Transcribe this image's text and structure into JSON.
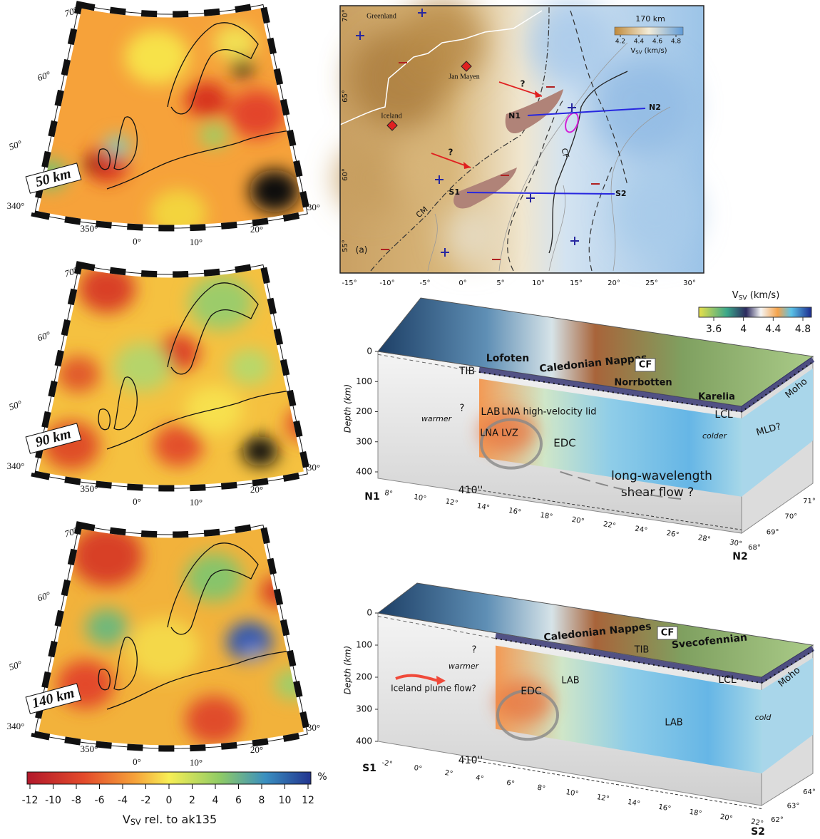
{
  "left_maps": {
    "panels": [
      {
        "depth": "50 km"
      },
      {
        "depth": "90 km"
      },
      {
        "depth": "140 km"
      }
    ],
    "lat_labels": [
      "70°",
      "60°",
      "50°"
    ],
    "lon_labels": [
      "340°",
      "350°",
      "0°",
      "10°",
      "20°",
      "30°"
    ]
  },
  "colorbar": {
    "ticks": [
      -12,
      -10,
      -8,
      -6,
      -4,
      -2,
      0,
      2,
      4,
      6,
      8,
      10,
      12
    ],
    "unit": "%",
    "label": {
      "v": "V",
      "sub": "SV",
      "rest": " rel. to ak135"
    }
  },
  "map_a": {
    "panel_label": "(a)",
    "depth_label": "170 km",
    "colorbar": {
      "ticks": [
        4.2,
        4.4,
        4.6,
        4.8
      ],
      "label": {
        "v": "V",
        "sub": "SV",
        "rest": " (km/s)"
      }
    },
    "lon_labels": [
      "-15°",
      "-10°",
      "-5°",
      "0°",
      "5°",
      "10°",
      "15°",
      "20°",
      "25°",
      "30°"
    ],
    "lat_labels": [
      "70°",
      "65°",
      "60°",
      "55°"
    ],
    "places": [
      "Greenland",
      "Jan Mayen",
      "Iceland"
    ],
    "profiles": [
      "N1",
      "N2",
      "S1",
      "S2"
    ],
    "faults": [
      "CF",
      "CM"
    ],
    "question_marks": [
      "?",
      "?"
    ]
  },
  "block_colorbar": {
    "ticks": [
      3.6,
      4.0,
      4.4,
      4.8
    ],
    "label": {
      "v": "V",
      "sub": "SV",
      "rest": " (km/s)"
    }
  },
  "block_n": {
    "depth_axis": "Depth (km)",
    "depth_ticks": [
      0,
      100,
      200,
      300,
      400
    ],
    "lon_labels": [
      "8°",
      "10°",
      "12°",
      "14°",
      "16°",
      "18°",
      "20°",
      "22°",
      "24°",
      "26°",
      "28°",
      "30°"
    ],
    "lat_labels": [
      "68°",
      "69°",
      "70°",
      "71°"
    ],
    "start": "N1",
    "end": "N2",
    "labels": [
      "Lofoten",
      "Caledonian Nappes",
      "CF",
      "TIB",
      "Norrbotten",
      "Karelia",
      "Moho",
      "LAB",
      "LNA high-velocity lid",
      "LCL",
      "warmer",
      "?",
      "LNA LVZ",
      "EDC",
      "colder",
      "MLD?",
      "long-wavelength",
      "shear flow ?",
      "410''"
    ]
  },
  "block_s": {
    "depth_axis": "Depth (km)",
    "depth_ticks": [
      0,
      100,
      200,
      300,
      400
    ],
    "lon_labels": [
      "-2°",
      "0°",
      "2°",
      "4°",
      "6°",
      "8°",
      "10°",
      "12°",
      "14°",
      "16°",
      "18°",
      "20°",
      "22°"
    ],
    "lat_labels": [
      "62°",
      "63°",
      "64°"
    ],
    "start": "S1",
    "end": "S2",
    "labels": [
      "Caledonian Nappes",
      "CF",
      "TIB",
      "Svecofennian",
      "Moho",
      "LCL",
      "?",
      "warmer",
      "Iceland plume flow?",
      "EDC",
      "LAB",
      "LAB",
      "cold",
      "410''"
    ]
  }
}
